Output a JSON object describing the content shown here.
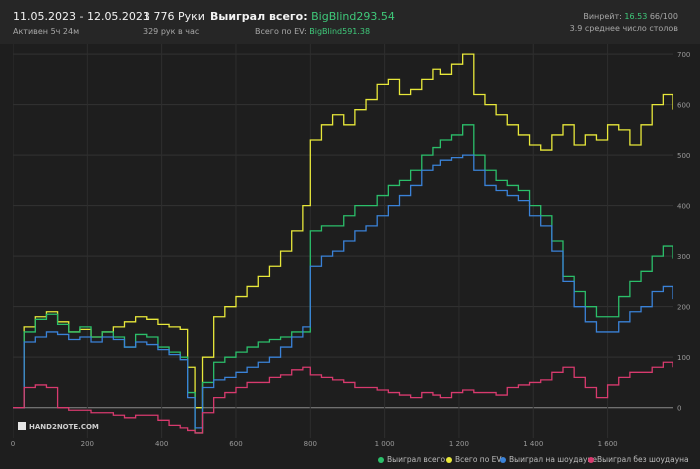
{
  "header": {
    "date_range": "11.05.2023 - 12.05.2023",
    "active": "Активен 5ч 24м",
    "hands": "1 776 Руки",
    "hands_per_hour": "329 рук в час",
    "won_total_label": "Выиграл всего:",
    "won_total_value": "BigBlind293.54",
    "ev_label": "Всего по EV:",
    "ev_value": "BigBlind591.38",
    "winrate_label": "Винрейт:",
    "winrate_value": "16.53",
    "winrate_sample": "66/100",
    "tables": "3.9 среднее число столов"
  },
  "logo": {
    "text": "HAND2NOTE.COM"
  },
  "colors": {
    "green": "#2bbf6a",
    "yellow": "#e8e83a",
    "blue": "#3a82d8",
    "pink": "#d83a6e"
  },
  "chart_data": {
    "type": "line",
    "xlim": [
      0,
      1776
    ],
    "ylim": [
      -60,
      720
    ],
    "x_ticks": [
      0,
      200,
      400,
      600,
      800,
      1000,
      1200,
      1400,
      1600
    ],
    "x_tick_labels": [
      "0",
      "200",
      "400",
      "600",
      "800",
      "1 000",
      "1 200",
      "1 400",
      "1 600"
    ],
    "y_ticks": [
      0,
      100,
      200,
      300,
      400,
      500,
      600,
      700
    ],
    "y_tick_labels": [
      "0",
      "100",
      "200",
      "300",
      "400",
      "500",
      "600",
      "700"
    ],
    "legend_position": "bottom-right",
    "series": [
      {
        "name": "Выиграл всего",
        "color": "#2bbf6a",
        "x": [
          0,
          30,
          60,
          90,
          120,
          150,
          180,
          210,
          240,
          270,
          300,
          330,
          360,
          390,
          420,
          450,
          470,
          490,
          510,
          540,
          570,
          600,
          630,
          660,
          690,
          720,
          750,
          780,
          800,
          830,
          860,
          890,
          920,
          950,
          980,
          1010,
          1040,
          1070,
          1100,
          1130,
          1150,
          1180,
          1210,
          1240,
          1270,
          1300,
          1330,
          1360,
          1390,
          1420,
          1450,
          1480,
          1510,
          1540,
          1570,
          1600,
          1630,
          1660,
          1690,
          1720,
          1750,
          1776
        ],
        "y": [
          0,
          150,
          175,
          185,
          165,
          150,
          160,
          140,
          150,
          140,
          120,
          145,
          140,
          120,
          110,
          100,
          30,
          -50,
          50,
          90,
          100,
          110,
          120,
          130,
          135,
          140,
          150,
          150,
          350,
          360,
          360,
          380,
          400,
          400,
          420,
          440,
          450,
          470,
          500,
          515,
          530,
          540,
          560,
          500,
          470,
          450,
          440,
          430,
          400,
          380,
          330,
          260,
          230,
          200,
          180,
          180,
          220,
          250,
          270,
          300,
          320,
          295
        ]
      },
      {
        "name": "Всего по EV",
        "color": "#e8e83a",
        "x": [
          0,
          30,
          60,
          90,
          120,
          150,
          180,
          210,
          240,
          270,
          300,
          330,
          360,
          390,
          420,
          450,
          470,
          490,
          510,
          540,
          570,
          600,
          630,
          660,
          690,
          720,
          750,
          780,
          800,
          830,
          860,
          890,
          920,
          950,
          980,
          1010,
          1040,
          1070,
          1100,
          1130,
          1150,
          1180,
          1210,
          1240,
          1270,
          1300,
          1330,
          1360,
          1390,
          1420,
          1450,
          1480,
          1510,
          1540,
          1570,
          1600,
          1630,
          1660,
          1690,
          1720,
          1750,
          1776
        ],
        "y": [
          0,
          160,
          180,
          190,
          170,
          150,
          155,
          140,
          150,
          160,
          170,
          180,
          175,
          165,
          160,
          155,
          80,
          0,
          100,
          180,
          200,
          220,
          240,
          260,
          280,
          310,
          350,
          400,
          530,
          560,
          580,
          560,
          590,
          610,
          640,
          650,
          620,
          630,
          650,
          670,
          660,
          680,
          700,
          620,
          600,
          580,
          560,
          540,
          520,
          510,
          540,
          560,
          520,
          540,
          530,
          560,
          550,
          520,
          560,
          600,
          620,
          590
        ]
      },
      {
        "name": "Выиграл на шоудауне",
        "color": "#3a82d8",
        "x": [
          0,
          30,
          60,
          90,
          120,
          150,
          180,
          210,
          240,
          270,
          300,
          330,
          360,
          390,
          420,
          450,
          470,
          490,
          510,
          540,
          570,
          600,
          630,
          660,
          690,
          720,
          750,
          780,
          800,
          830,
          860,
          890,
          920,
          950,
          980,
          1010,
          1040,
          1070,
          1100,
          1130,
          1150,
          1180,
          1210,
          1240,
          1270,
          1300,
          1330,
          1360,
          1390,
          1420,
          1450,
          1480,
          1510,
          1540,
          1570,
          1600,
          1630,
          1660,
          1690,
          1720,
          1750,
          1776
        ],
        "y": [
          0,
          130,
          140,
          150,
          145,
          135,
          140,
          130,
          140,
          135,
          120,
          130,
          125,
          115,
          105,
          95,
          20,
          -40,
          40,
          55,
          60,
          70,
          80,
          90,
          100,
          120,
          140,
          160,
          280,
          300,
          310,
          330,
          350,
          360,
          380,
          400,
          420,
          440,
          470,
          480,
          490,
          495,
          500,
          470,
          440,
          430,
          420,
          410,
          380,
          360,
          310,
          250,
          200,
          170,
          150,
          150,
          170,
          190,
          200,
          230,
          240,
          215
        ]
      },
      {
        "name": "Выиграл без шоудауна",
        "color": "#d83a6e",
        "x": [
          0,
          30,
          60,
          90,
          120,
          150,
          180,
          210,
          240,
          270,
          300,
          330,
          360,
          390,
          420,
          450,
          470,
          490,
          510,
          540,
          570,
          600,
          630,
          660,
          690,
          720,
          750,
          780,
          800,
          830,
          860,
          890,
          920,
          950,
          980,
          1010,
          1040,
          1070,
          1100,
          1130,
          1150,
          1180,
          1210,
          1240,
          1270,
          1300,
          1330,
          1360,
          1390,
          1420,
          1450,
          1480,
          1510,
          1540,
          1570,
          1600,
          1630,
          1660,
          1690,
          1720,
          1750,
          1776
        ],
        "y": [
          0,
          40,
          45,
          40,
          0,
          -5,
          -5,
          -10,
          -10,
          -15,
          -20,
          -15,
          -15,
          -25,
          -35,
          -40,
          -45,
          -50,
          -10,
          20,
          30,
          40,
          50,
          50,
          60,
          65,
          75,
          80,
          65,
          60,
          55,
          50,
          40,
          40,
          35,
          30,
          25,
          20,
          30,
          25,
          20,
          30,
          35,
          30,
          30,
          25,
          40,
          45,
          50,
          55,
          70,
          80,
          60,
          40,
          20,
          45,
          60,
          70,
          70,
          80,
          90,
          80
        ]
      }
    ]
  }
}
